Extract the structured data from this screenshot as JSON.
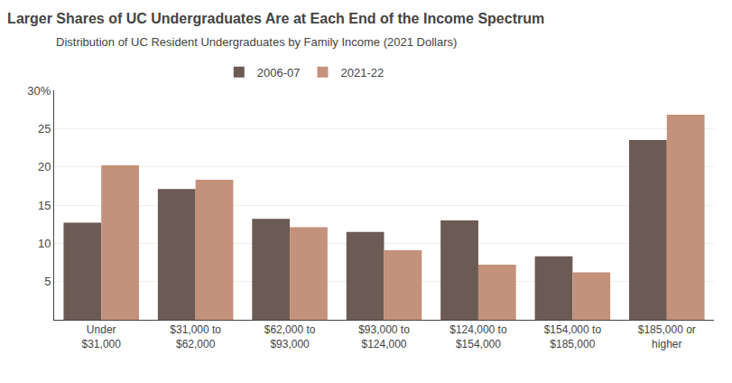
{
  "chart_data": {
    "type": "bar",
    "title": "Larger Shares of UC Undergraduates Are at Each End of the Income Spectrum",
    "subtitle": "Distribution of UC Resident Undergraduates by Family Income (2021 Dollars)",
    "categories": [
      "Under\n$31,000",
      "$31,000 to\n$62,000",
      "$62,000 to\n$93,000",
      "$93,000 to\n$124,000",
      "$124,000 to\n$154,000",
      "$154,000 to\n$185,000",
      "$185,000 or\nhigher"
    ],
    "series": [
      {
        "name": "2006-07",
        "color": "#6b5b54",
        "values": [
          12.7,
          17.1,
          13.2,
          11.5,
          13.0,
          8.3,
          23.5
        ]
      },
      {
        "name": "2021-22",
        "color": "#c4917a",
        "values": [
          20.2,
          18.3,
          12.1,
          9.1,
          7.2,
          6.2,
          26.8
        ]
      }
    ],
    "ylim": [
      0,
      30
    ],
    "yticks": [
      5,
      10,
      15,
      20,
      25,
      {
        "value": 30,
        "label": "30%"
      }
    ],
    "grid": true,
    "legend": "top"
  }
}
